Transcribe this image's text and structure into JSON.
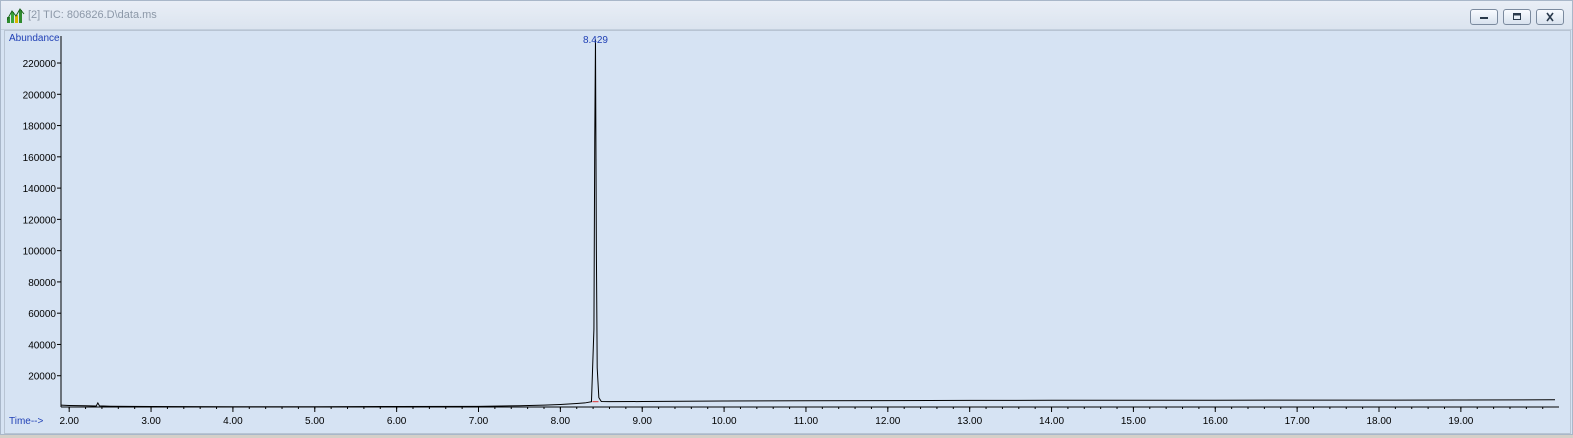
{
  "window": {
    "title": "[2] TIC: 806826.D\\data.ms",
    "buttons": {
      "minimize": "minimize",
      "restore": "restore",
      "close": "close"
    }
  },
  "colors": {
    "plot_background": "#d6e3f3",
    "trace": "#000000",
    "axis_label": "#1f3fb5",
    "peak_label": "#1f3fb5",
    "integration_marker": "#e03030"
  },
  "chart_data": {
    "type": "line",
    "title": "",
    "ylabel": "Abundance",
    "xlabel": "Time-->",
    "xlim": [
      1.9,
      20.15
    ],
    "ylim": [
      0,
      236000
    ],
    "x_ticks": [
      2.0,
      3.0,
      4.0,
      5.0,
      6.0,
      7.0,
      8.0,
      9.0,
      10.0,
      11.0,
      12.0,
      13.0,
      14.0,
      15.0,
      16.0,
      17.0,
      18.0,
      19.0
    ],
    "x_tick_labels": [
      "2.00",
      "3.00",
      "4.00",
      "5.00",
      "6.00",
      "7.00",
      "8.00",
      "9.00",
      "10.00",
      "11.00",
      "12.00",
      "13.00",
      "14.00",
      "15.00",
      "16.00",
      "17.00",
      "18.00",
      "19.00"
    ],
    "y_ticks": [
      20000,
      40000,
      60000,
      80000,
      100000,
      120000,
      140000,
      160000,
      180000,
      200000,
      220000
    ],
    "y_tick_labels": [
      "20000",
      "40000",
      "60000",
      "80000",
      "100000",
      "120000",
      "140000",
      "160000",
      "180000",
      "200000",
      "220000"
    ],
    "grid": false,
    "peak_annotation": {
      "x": 8.429,
      "label": "8.429"
    },
    "series": [
      {
        "x": [
          1.9,
          2.0,
          2.2,
          2.33,
          2.35,
          2.37,
          2.5,
          3.0,
          4.0,
          5.0,
          6.0,
          7.0,
          7.5,
          7.8,
          8.0,
          8.2,
          8.3,
          8.38,
          8.41,
          8.42,
          8.429,
          8.44,
          8.45,
          8.47,
          8.5,
          8.6,
          9.0,
          10.0,
          11.0,
          12.0,
          13.0,
          14.0,
          15.0,
          16.0,
          17.0,
          18.0,
          19.0,
          20.15
        ],
        "y": [
          1200,
          1000,
          800,
          600,
          2600,
          700,
          500,
          300,
          200,
          200,
          300,
          400,
          800,
          1200,
          1600,
          2200,
          2600,
          3400,
          50000,
          172000,
          235000,
          100000,
          25000,
          6000,
          3500,
          3400,
          3500,
          3800,
          4000,
          4100,
          4200,
          4300,
          4300,
          4300,
          4400,
          4400,
          4500,
          4600
        ]
      }
    ]
  }
}
